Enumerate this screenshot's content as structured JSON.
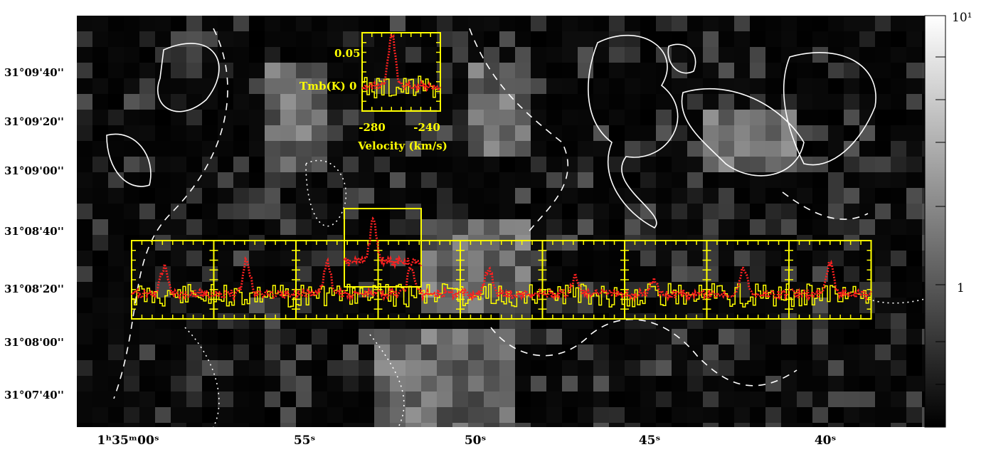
{
  "map": {
    "dec_labels": [
      "31°09'40''",
      "31°09'20''",
      "31°09'00''",
      "31°08'40''",
      "31°08'20''",
      "31°08'00''",
      "31°07'40''"
    ],
    "ra_labels": [
      "1ʰ35ᵐ00ˢ",
      "55ˢ",
      "50ˢ",
      "45ˢ",
      "40ˢ"
    ]
  },
  "colorbar": {
    "top_label": "10¹",
    "mid_label": "1"
  },
  "inset": {
    "y_tick_top": "0.05",
    "y_tick_zero": "0",
    "y_label": "Tmb(K)",
    "x_ticks": [
      "-280",
      "-240"
    ],
    "x_label": "Velocity (km/s)"
  },
  "colors": {
    "background": "#000000",
    "frame": "#ffff00",
    "spectrum_red": "#ff2020",
    "spectrum_yellow": "#ffff00",
    "contour": "#ffffff"
  },
  "spectra_panels": 9
}
